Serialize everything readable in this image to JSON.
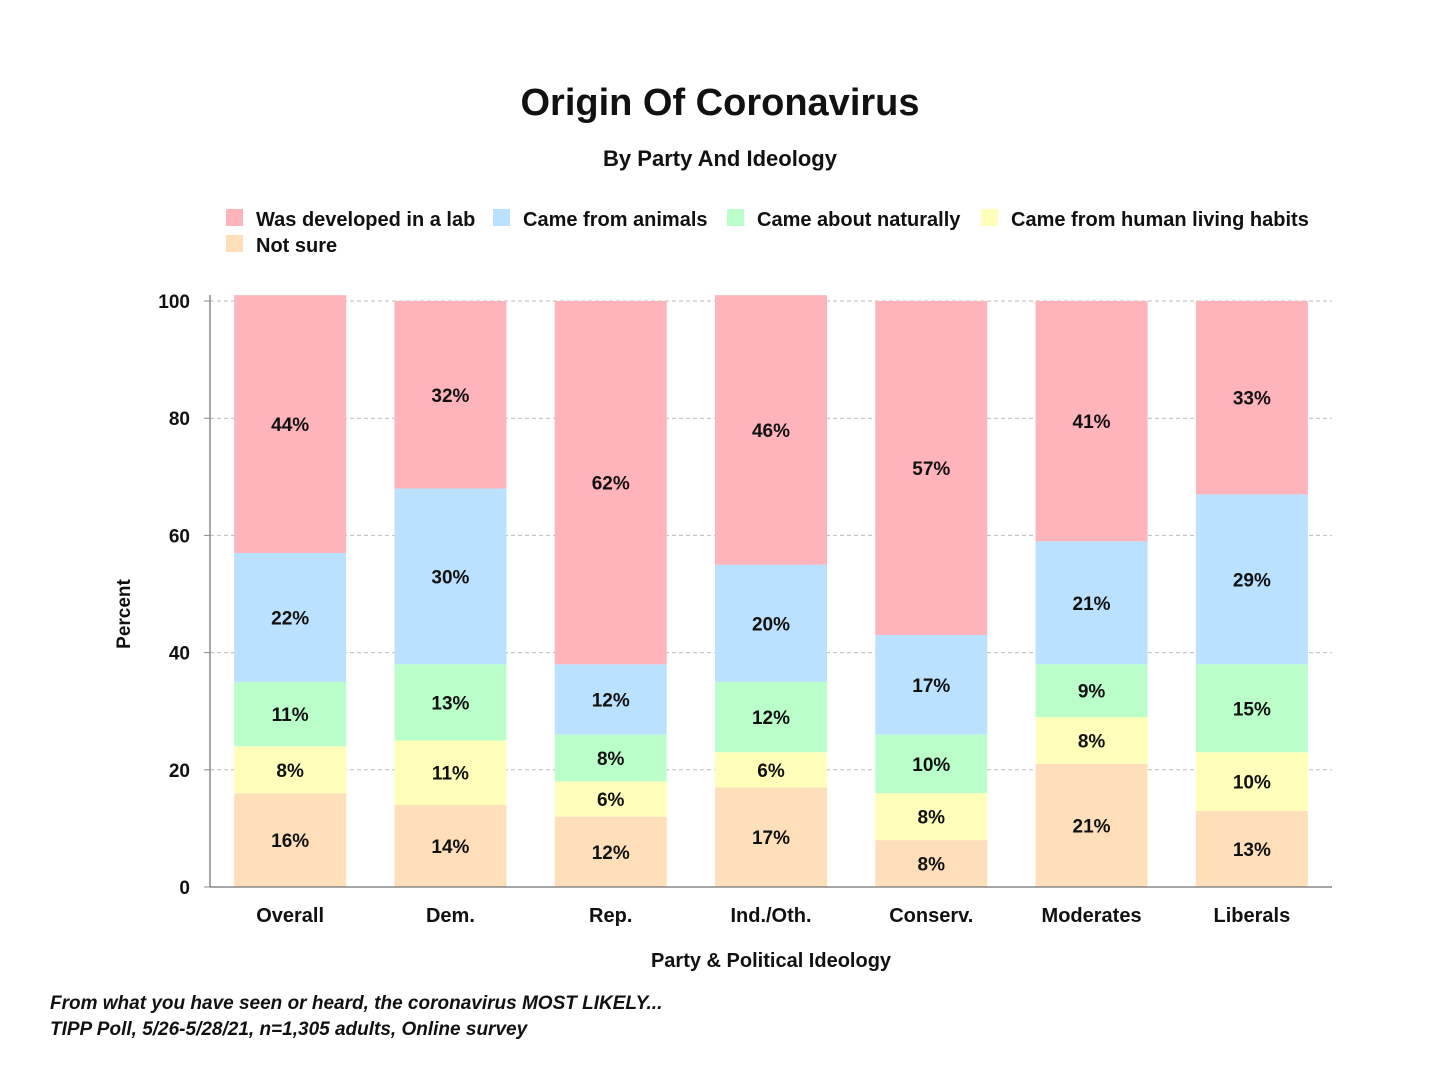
{
  "chart_data": {
    "type": "bar",
    "stacked": true,
    "title": "Origin Of Coronavirus",
    "subtitle": "By Party And Ideology",
    "xlabel": "Party & Political Ideology",
    "ylabel": "Percent",
    "ylim": [
      0,
      100
    ],
    "yticks": [
      0,
      20,
      40,
      60,
      80,
      100
    ],
    "grid": true,
    "legend_position": "top",
    "categories": [
      "Overall",
      "Dem.",
      "Rep.",
      "Ind./Oth.",
      "Conserv.",
      "Moderates",
      "Liberals"
    ],
    "series": [
      {
        "name": "Not sure",
        "color": "#ffdfba",
        "values": [
          16,
          14,
          12,
          17,
          8,
          21,
          13
        ]
      },
      {
        "name": "Came from human living habits",
        "color": "#ffffba",
        "values": [
          8,
          11,
          6,
          6,
          8,
          8,
          10
        ]
      },
      {
        "name": "Came about naturally",
        "color": "#baffc9",
        "values": [
          11,
          13,
          8,
          12,
          10,
          9,
          15
        ]
      },
      {
        "name": "Came from animals",
        "color": "#bae1ff",
        "values": [
          22,
          30,
          12,
          20,
          17,
          21,
          29
        ]
      },
      {
        "name": "Was developed in a lab",
        "color": "#ffb3ba",
        "values": [
          44,
          32,
          62,
          46,
          57,
          41,
          33
        ]
      }
    ],
    "legend_order": [
      "Was developed in a lab",
      "Came from animals",
      "Came about naturally",
      "Came from human living habits",
      "Not sure"
    ],
    "value_suffix": "%"
  },
  "notes": [
    "From what you have seen or heard, the coronavirus MOST LIKELY...",
    "TIPP Poll, 5/26-5/28/21, n=1,305 adults, Online survey"
  ]
}
